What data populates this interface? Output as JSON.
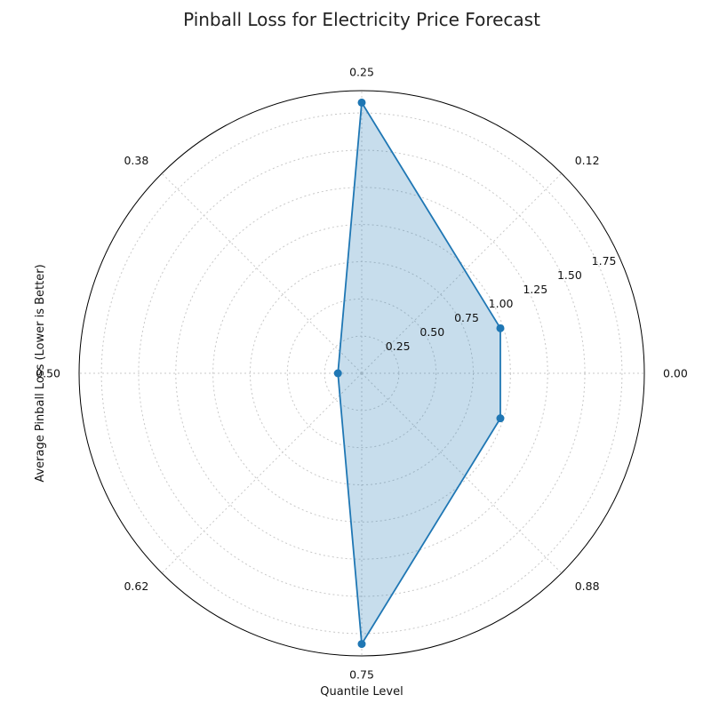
{
  "chart_data": {
    "type": "radar",
    "title": "Pinball Loss for Electricity Price Forecast",
    "xlabel": "Quantile Level",
    "ylabel": "Average Pinball Loss (Lower is Better)",
    "angle_tick_labels": [
      "0.00",
      "0.12",
      "0.25",
      "0.38",
      "0.50",
      "0.62",
      "0.75",
      "0.88"
    ],
    "radial_ticks": [
      0.25,
      0.5,
      0.75,
      1.0,
      1.25,
      1.5,
      1.75
    ],
    "radial_tick_labels": [
      "0.25",
      "0.50",
      "0.75",
      "1.00",
      "1.25",
      "1.50",
      "1.75"
    ],
    "rlim": [
      0,
      1.9
    ],
    "categories": [
      "0.05",
      "0.25",
      "0.5",
      "0.75",
      "0.95"
    ],
    "points": [
      {
        "angle_deg": 18,
        "value": 0.98
      },
      {
        "angle_deg": 90,
        "value": 1.82
      },
      {
        "angle_deg": 180,
        "value": 0.16
      },
      {
        "angle_deg": 270,
        "value": 1.82
      },
      {
        "angle_deg": 342,
        "value": 0.98
      }
    ],
    "grid": true,
    "color": "#1f77b4"
  }
}
